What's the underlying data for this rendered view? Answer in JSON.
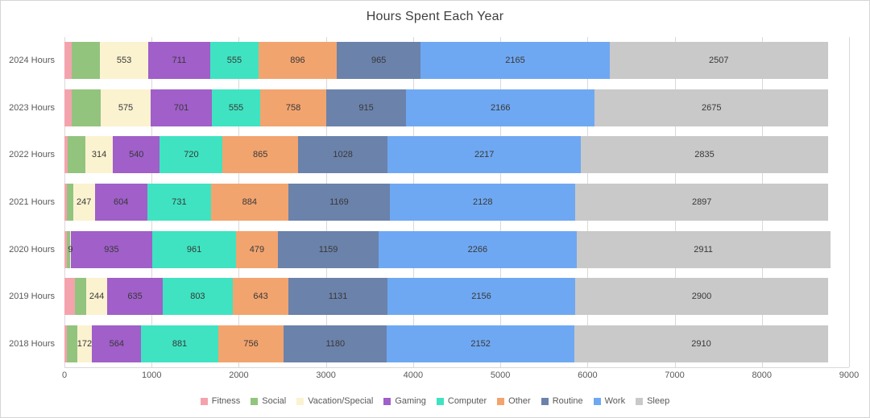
{
  "title": "Hours Spent Each Year",
  "chart_data": {
    "type": "bar",
    "orientation": "horizontal-stacked",
    "title": "Hours Spent Each Year",
    "categories": [
      "2024 Hours",
      "2023 Hours",
      "2022 Hours",
      "2021 Hours",
      "2020 Hours",
      "2019 Hours",
      "2018 Hours"
    ],
    "series": [
      {
        "name": "Fitness",
        "color": "#f4a3ad",
        "show_labels": false,
        "values": [
          82,
          85,
          41,
          30,
          30,
          118,
          25
        ]
      },
      {
        "name": "Social",
        "color": "#92c47e",
        "show_labels": false,
        "values": [
          326,
          330,
          200,
          70,
          34,
          130,
          120
        ]
      },
      {
        "name": "Vacation/Special",
        "color": "#fbf2d0",
        "show_labels": true,
        "values": [
          553,
          575,
          314,
          247,
          9,
          244,
          172
        ]
      },
      {
        "name": "Gaming",
        "color": "#a05fc9",
        "show_labels": true,
        "values": [
          711,
          701,
          540,
          604,
          935,
          635,
          564
        ]
      },
      {
        "name": "Computer",
        "color": "#3fe3c1",
        "show_labels": true,
        "values": [
          555,
          555,
          720,
          731,
          961,
          803,
          881
        ]
      },
      {
        "name": "Other",
        "color": "#f2a46f",
        "show_labels": true,
        "values": [
          896,
          758,
          865,
          884,
          479,
          643,
          756
        ]
      },
      {
        "name": "Routine",
        "color": "#6b82ab",
        "show_labels": true,
        "values": [
          965,
          915,
          1028,
          1169,
          1159,
          1131,
          1180
        ]
      },
      {
        "name": "Work",
        "color": "#6fa8f2",
        "show_labels": true,
        "values": [
          2165,
          2166,
          2217,
          2128,
          2266,
          2156,
          2152
        ]
      },
      {
        "name": "Sleep",
        "color": "#c9c9c9",
        "show_labels": true,
        "values": [
          2507,
          2675,
          2835,
          2897,
          2911,
          2900,
          2910
        ]
      }
    ],
    "xlim": [
      0,
      9000
    ],
    "xticks": [
      0,
      1000,
      2000,
      3000,
      4000,
      5000,
      6000,
      7000,
      8000,
      9000
    ],
    "grid": "vertical",
    "legend_position": "bottom"
  }
}
